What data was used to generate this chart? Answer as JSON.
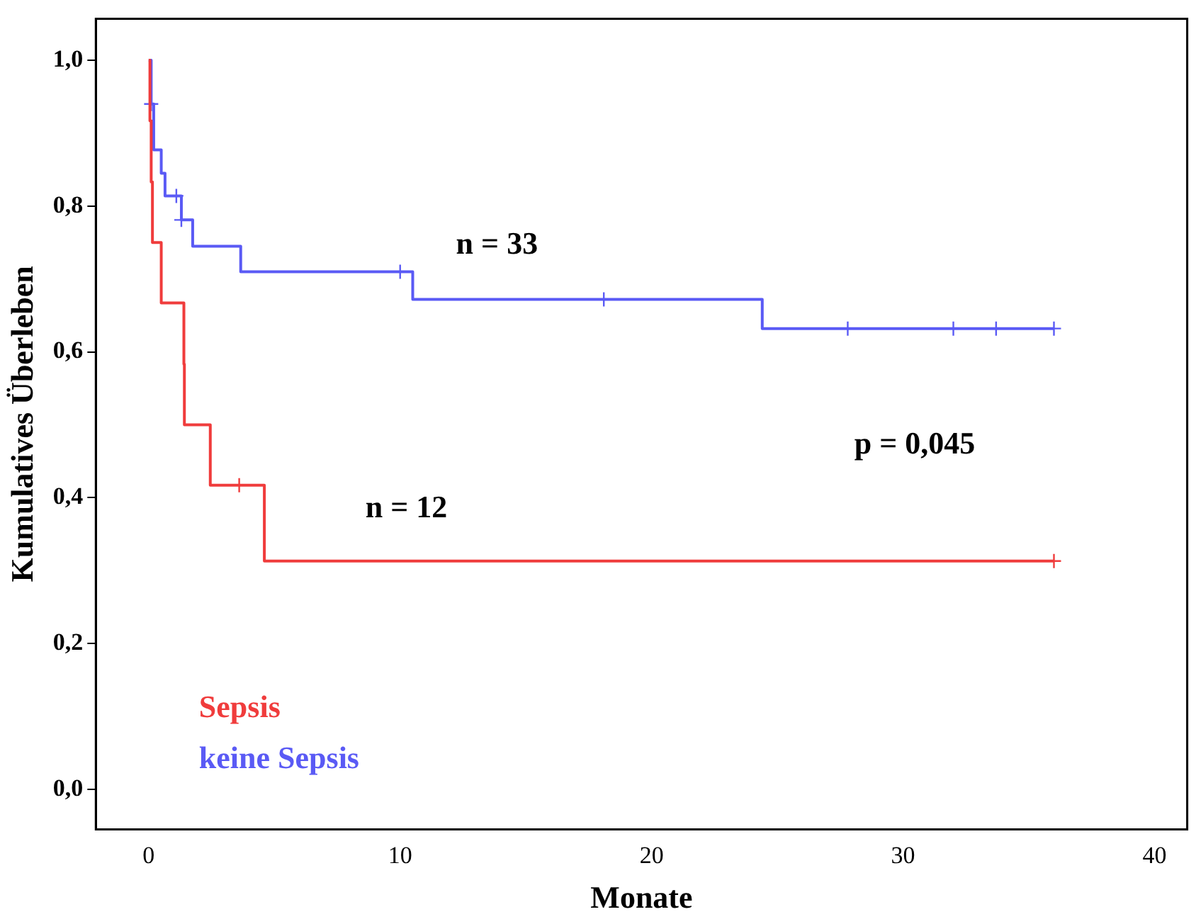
{
  "chart_data": {
    "type": "step",
    "xlabel": "Monate",
    "ylabel": "Kumulatives Überleben",
    "xlim": [
      -2.1,
      41.3
    ],
    "ylim": [
      -0.055,
      1.057
    ],
    "xticks": [
      0,
      10,
      20,
      30,
      40
    ],
    "yticks": [
      {
        "value": 0,
        "label": "0,0"
      },
      {
        "value": 0.2,
        "label": "0,2"
      },
      {
        "value": 0.4,
        "label": "0,4"
      },
      {
        "value": 0.6,
        "label": "0,6"
      },
      {
        "value": 0.8,
        "label": "0,8"
      },
      {
        "value": 1,
        "label": "1,0"
      }
    ],
    "grid": false,
    "legend": "bottom left",
    "marker": "none",
    "line_style": "solid",
    "series": [
      {
        "name": "Sepsis",
        "color": "#f03c3c",
        "x": [
          0,
          0.05,
          0.1,
          0.15,
          0.5,
          1.4,
          1.42,
          2.45,
          4.6,
          36
        ],
        "values": [
          1,
          0.917,
          0.833,
          0.75,
          0.667,
          0.583,
          0.5,
          0.417,
          0.313,
          0.313
        ]
      },
      {
        "name": "keine Sepsis",
        "color": "#5a5af5",
        "x": [
          0,
          0.1,
          0.2,
          0.5,
          0.65,
          1.3,
          1.75,
          3.66,
          10.5,
          24.4,
          36
        ],
        "values": [
          1,
          0.94,
          0.877,
          0.845,
          0.814,
          0.781,
          0.745,
          0.71,
          0.672,
          0.632,
          0.632
        ]
      },
      {
        "type": "scatter",
        "marker": "cross",
        "color": "#f03c3c",
        "x": [
          3.6,
          36
        ],
        "values": [
          0.417,
          0.313
        ]
      },
      {
        "type": "scatter",
        "marker": "cross",
        "color": "#5a5af5",
        "x": [
          0.1,
          1.1,
          1.3,
          10,
          18.1,
          27.8,
          32,
          33.7,
          36
        ],
        "values": [
          0.94,
          0.814,
          0.781,
          0.71,
          0.672,
          0.632,
          0.632,
          0.632,
          0.632
        ]
      }
    ],
    "annotations": [
      "n = 33",
      "n = 12",
      "p = 0,045"
    ]
  }
}
